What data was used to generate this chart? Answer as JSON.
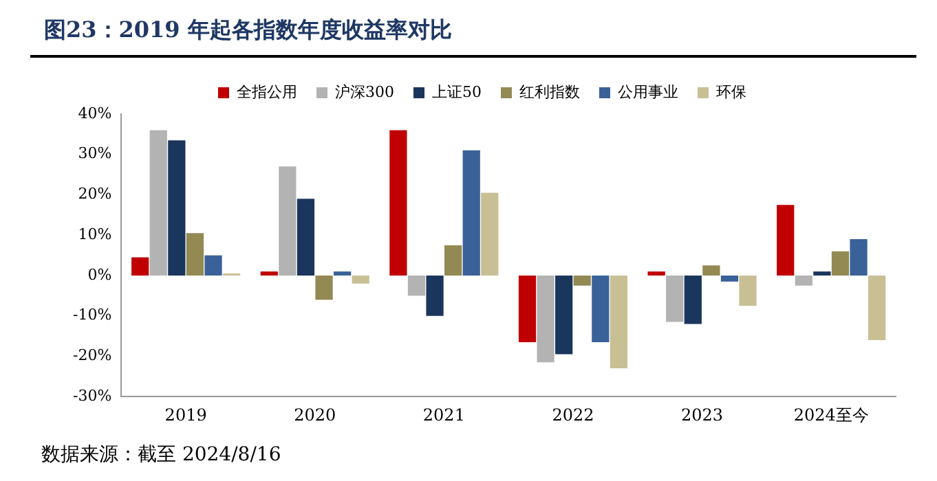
{
  "chart_data": {
    "type": "bar",
    "title": "图23：2019 年起各指数年度收益率对比",
    "categories": [
      "2019",
      "2020",
      "2021",
      "2022",
      "2023",
      "2024至今"
    ],
    "series": [
      {
        "name": "全指公用",
        "color": "#c00000",
        "values": [
          4.5,
          1,
          36,
          -16.5,
          1,
          17.5
        ]
      },
      {
        "name": "沪深300",
        "color": "#b3b3b3",
        "values": [
          36,
          27,
          -5,
          -21.5,
          -11.5,
          -2.5
        ]
      },
      {
        "name": "上证50",
        "color": "#1b365d",
        "values": [
          33.5,
          19,
          -10,
          -19.5,
          -12,
          1
        ]
      },
      {
        "name": "红利指数",
        "color": "#938953",
        "values": [
          10.5,
          -6,
          7.5,
          -2.5,
          2.5,
          6
        ]
      },
      {
        "name": "公用事业",
        "color": "#3a6298",
        "values": [
          5,
          1,
          31,
          -16.5,
          -1.5,
          9
        ]
      },
      {
        "name": "环保",
        "color": "#c8bf95",
        "values": [
          0.5,
          -2,
          20.5,
          -23,
          -7.5,
          -16
        ]
      }
    ],
    "ylim": [
      -30,
      40
    ],
    "yticks": [
      {
        "value": -30,
        "label": "-30%"
      },
      {
        "value": -20,
        "label": "-20%"
      },
      {
        "value": -10,
        "label": "-10%"
      },
      {
        "value": 0,
        "label": "0%"
      },
      {
        "value": 10,
        "label": "10%"
      },
      {
        "value": 20,
        "label": "20%"
      },
      {
        "value": 30,
        "label": "30%"
      },
      {
        "value": 40,
        "label": "40%"
      }
    ],
    "grid": false,
    "legend": "top",
    "annotations": [
      "数据来源：截至 2024/8/16"
    ]
  }
}
